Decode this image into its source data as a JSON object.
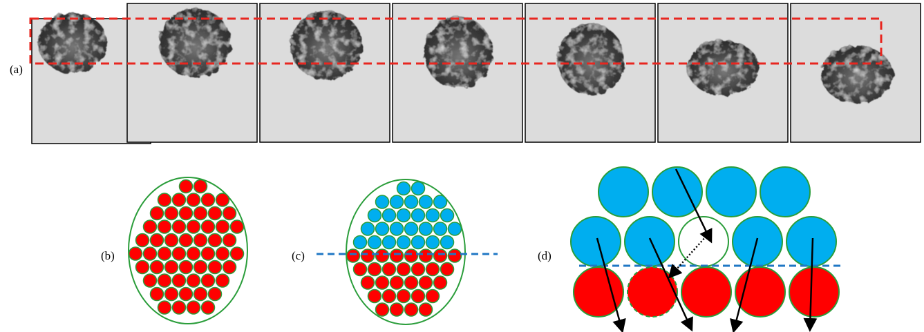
{
  "panels": {
    "a": {
      "label": "(a)"
    },
    "b": {
      "label": "(b)"
    },
    "c": {
      "label": "(c)"
    },
    "d": {
      "label": "(d)"
    }
  }
}
